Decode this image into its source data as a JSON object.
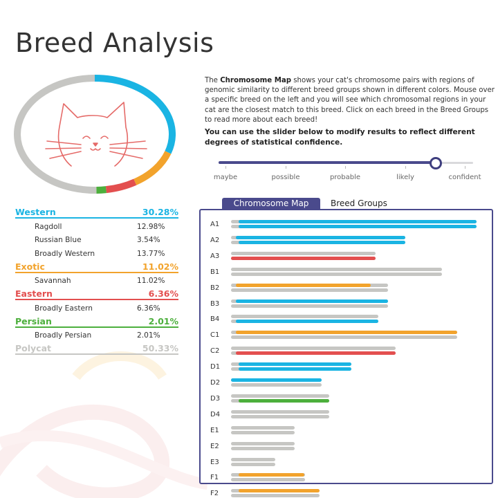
{
  "page": {
    "title": "Breed Analysis"
  },
  "colors": {
    "western": "#1ab4e3",
    "exotic": "#f2a32c",
    "eastern": "#e34f4f",
    "persian": "#4caf3c",
    "polycat": "#c6c6c3",
    "accent": "#4a4a8c",
    "cat_icon": "#e56a68"
  },
  "description": {
    "p1_intro": "The ",
    "p1_bold": "Chromosome Map",
    "p1_rest": " shows your cat's chromosome pairs with regions of genomic similarity to different breed groups shown in different colors. Mouse over a specific breed on the left and you will see which chromosomal regions in your cat are the closest match to this breed. Click on each breed in the Breed Groups to read more about each breed!",
    "p2": "You can use the slider below to modify results to reflect different degrees of statistical confidence."
  },
  "slider": {
    "labels": [
      "maybe",
      "possible",
      "probable",
      "likely",
      "confident"
    ],
    "selected_index": 4,
    "value": 0.85
  },
  "donut": {
    "icon": "cat-face-icon",
    "segments": [
      {
        "group": "western",
        "percent": 30.28
      },
      {
        "group": "exotic",
        "percent": 11.02
      },
      {
        "group": "eastern",
        "percent": 6.36
      },
      {
        "group": "persian",
        "percent": 2.01
      },
      {
        "group": "polycat",
        "percent": 50.33
      }
    ]
  },
  "groups": [
    {
      "key": "western",
      "name": "Western",
      "pct": "30.28%",
      "breeds": [
        {
          "name": "Ragdoll",
          "pct": "12.98%"
        },
        {
          "name": "Russian Blue",
          "pct": "3.54%"
        },
        {
          "name": "Broadly Western",
          "pct": "13.77%"
        }
      ]
    },
    {
      "key": "exotic",
      "name": "Exotic",
      "pct": "11.02%",
      "breeds": [
        {
          "name": "Savannah",
          "pct": "11.02%"
        }
      ]
    },
    {
      "key": "eastern",
      "name": "Eastern",
      "pct": "6.36%",
      "breeds": [
        {
          "name": "Broadly Eastern",
          "pct": "6.36%"
        }
      ]
    },
    {
      "key": "persian",
      "name": "Persian",
      "pct": "2.01%",
      "breeds": [
        {
          "name": "Broadly Persian",
          "pct": "2.01%"
        }
      ]
    },
    {
      "key": "polycat",
      "name": "Polycat",
      "pct": "50.33%",
      "breeds": []
    }
  ],
  "tabs": {
    "chromosome_map": "Chromosome Map",
    "breed_groups": "Breed Groups",
    "active": "chromosome_map"
  },
  "chromosomes": [
    {
      "label": "A1",
      "length": 1.0,
      "top": [
        {
          "g": "western",
          "s": 0.03,
          "e": 1.0
        }
      ],
      "bottom": [
        {
          "g": "western",
          "s": 0.03,
          "e": 1.0
        }
      ]
    },
    {
      "label": "A2",
      "length": 0.71,
      "top": [
        {
          "g": "western",
          "s": 0.02,
          "e": 0.71
        }
      ],
      "bottom": [
        {
          "g": "western",
          "s": 0.03,
          "e": 0.71
        }
      ]
    },
    {
      "label": "A3",
      "length": 0.59,
      "top": [],
      "bottom": [
        {
          "g": "eastern",
          "s": 0.0,
          "e": 0.59
        }
      ]
    },
    {
      "label": "B1",
      "length": 0.86,
      "top": [],
      "bottom": []
    },
    {
      "label": "B2",
      "length": 0.64,
      "top": [
        {
          "g": "exotic",
          "s": 0.02,
          "e": 0.57
        }
      ],
      "bottom": []
    },
    {
      "label": "B3",
      "length": 0.64,
      "top": [
        {
          "g": "western",
          "s": 0.02,
          "e": 0.64
        }
      ],
      "bottom": []
    },
    {
      "label": "B4",
      "length": 0.6,
      "top": [],
      "bottom": [
        {
          "g": "western",
          "s": 0.02,
          "e": 0.6
        }
      ]
    },
    {
      "label": "C1",
      "length": 0.92,
      "top": [
        {
          "g": "exotic",
          "s": 0.02,
          "e": 0.92
        }
      ],
      "bottom": []
    },
    {
      "label": "C2",
      "length": 0.67,
      "top": [],
      "bottom": [
        {
          "g": "eastern",
          "s": 0.02,
          "e": 0.67
        }
      ]
    },
    {
      "label": "D1",
      "length": 0.49,
      "top": [
        {
          "g": "western",
          "s": 0.03,
          "e": 0.49
        }
      ],
      "bottom": [
        {
          "g": "western",
          "s": 0.03,
          "e": 0.49
        }
      ]
    },
    {
      "label": "D2",
      "length": 0.37,
      "top": [
        {
          "g": "western",
          "s": 0.0,
          "e": 0.37
        }
      ],
      "bottom": []
    },
    {
      "label": "D3",
      "length": 0.4,
      "top": [],
      "bottom": [
        {
          "g": "persian",
          "s": 0.03,
          "e": 0.4
        }
      ]
    },
    {
      "label": "D4",
      "length": 0.4,
      "top": [],
      "bottom": []
    },
    {
      "label": "E1",
      "length": 0.26,
      "top": [],
      "bottom": []
    },
    {
      "label": "E2",
      "length": 0.26,
      "top": [],
      "bottom": []
    },
    {
      "label": "E3",
      "length": 0.18,
      "top": [],
      "bottom": []
    },
    {
      "label": "F1",
      "length": 0.3,
      "top": [
        {
          "g": "exotic",
          "s": 0.03,
          "e": 0.3
        }
      ],
      "bottom": []
    },
    {
      "label": "F2",
      "length": 0.36,
      "top": [
        {
          "g": "exotic",
          "s": 0.03,
          "e": 0.36
        }
      ],
      "bottom": []
    }
  ]
}
